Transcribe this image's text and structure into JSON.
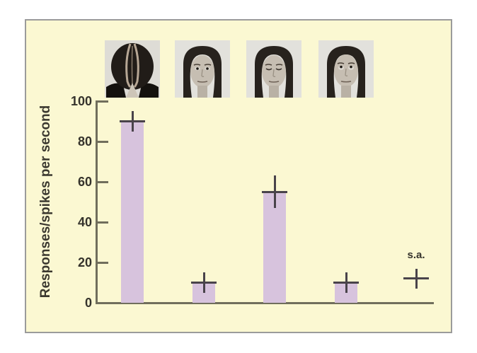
{
  "figure": {
    "page_background": "#ffffff",
    "panel_background": "#fbf8d2",
    "panel_border_color": "#9b9b9b"
  },
  "stimuli": [
    {
      "name": "head-lowered",
      "description": "head bowed forward, top of head visible"
    },
    {
      "name": "direct-gaze",
      "description": "face frontal, eyes open, direct gaze"
    },
    {
      "name": "eyes-closed",
      "description": "face frontal, eyes closed"
    },
    {
      "name": "gaze-up",
      "description": "face frontal, eyes looking upward"
    }
  ],
  "chart_data": {
    "type": "bar",
    "title": "",
    "xlabel": "",
    "ylabel": "Responses/spikes per second",
    "ylim": [
      0,
      100
    ],
    "yticks": [
      0,
      20,
      40,
      60,
      80,
      100
    ],
    "grid": false,
    "legend": null,
    "categories": [
      "head lowered (top of head)",
      "direct gaze",
      "eyes closed",
      "gaze up",
      "spontaneous activity"
    ],
    "points": [
      {
        "category": "head lowered (top of head)",
        "value": 90,
        "error": 5,
        "bar": true
      },
      {
        "category": "direct gaze",
        "value": 10,
        "error": 5,
        "bar": true
      },
      {
        "category": "eyes closed",
        "value": 55,
        "error": 8,
        "bar": true
      },
      {
        "category": "gaze up",
        "value": 10,
        "error": 5,
        "bar": true
      },
      {
        "category": "spontaneous activity",
        "value": 12,
        "error": 5,
        "bar": false,
        "label": "s.a."
      }
    ],
    "bar_color": "#d7c3dd",
    "error_color": "#49434a",
    "axis_color": "#706e5c",
    "text_color": "#35332c"
  }
}
